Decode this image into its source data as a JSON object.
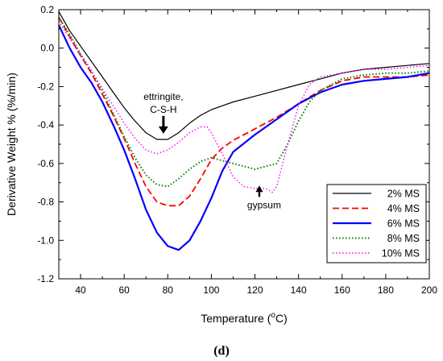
{
  "chart_data": {
    "type": "line",
    "xlabel": "Temperature (",
    "xlabel_unit": "o",
    "xlabel_tail": "C)",
    "ylabel": "Derivative Weight % (%/min)",
    "xlim": [
      30,
      200
    ],
    "ylim": [
      -1.2,
      0.2
    ],
    "x_ticks": [
      "40",
      "60",
      "80",
      "100",
      "120",
      "140",
      "160",
      "180",
      "200"
    ],
    "y_ticks": [
      "0.2",
      "0.0",
      "-0.2",
      "-0.4",
      "-0.6",
      "-0.8",
      "-1.0",
      "-1.2"
    ],
    "legend_position": "bottom-right",
    "series": [
      {
        "name": "2% MS",
        "color": "#000000",
        "style": "solid",
        "x": [
          30,
          35,
          40,
          45,
          50,
          55,
          60,
          65,
          70,
          75,
          80,
          85,
          90,
          95,
          100,
          110,
          120,
          130,
          140,
          150,
          160,
          170,
          180,
          190,
          200
        ],
        "y": [
          0.19,
          0.09,
          0.01,
          -0.07,
          -0.15,
          -0.23,
          -0.31,
          -0.38,
          -0.44,
          -0.475,
          -0.475,
          -0.44,
          -0.39,
          -0.35,
          -0.32,
          -0.28,
          -0.25,
          -0.22,
          -0.19,
          -0.16,
          -0.13,
          -0.11,
          -0.1,
          -0.09,
          -0.08
        ]
      },
      {
        "name": "4% MS",
        "color": "#ff0000",
        "style": "dashed",
        "x": [
          30,
          35,
          40,
          45,
          50,
          55,
          60,
          65,
          70,
          75,
          80,
          85,
          90,
          95,
          100,
          105,
          110,
          120,
          130,
          140,
          150,
          160,
          170,
          180,
          190,
          200
        ],
        "y": [
          0.16,
          0.06,
          -0.04,
          -0.13,
          -0.24,
          -0.35,
          -0.47,
          -0.6,
          -0.72,
          -0.8,
          -0.82,
          -0.82,
          -0.77,
          -0.68,
          -0.58,
          -0.52,
          -0.48,
          -0.42,
          -0.36,
          -0.29,
          -0.22,
          -0.17,
          -0.15,
          -0.15,
          -0.15,
          -0.14
        ]
      },
      {
        "name": "6% MS",
        "color": "#0000ff",
        "style": "solid",
        "x": [
          30,
          35,
          40,
          45,
          50,
          55,
          60,
          65,
          70,
          75,
          80,
          85,
          90,
          95,
          100,
          105,
          110,
          120,
          130,
          140,
          150,
          160,
          170,
          180,
          190,
          200
        ],
        "y": [
          0.12,
          0.0,
          -0.1,
          -0.18,
          -0.28,
          -0.4,
          -0.53,
          -0.68,
          -0.84,
          -0.96,
          -1.03,
          -1.05,
          -1.0,
          -0.9,
          -0.78,
          -0.64,
          -0.54,
          -0.45,
          -0.37,
          -0.29,
          -0.23,
          -0.19,
          -0.17,
          -0.16,
          -0.15,
          -0.13
        ]
      },
      {
        "name": "8% MS",
        "color": "#008000",
        "style": "dotted",
        "x": [
          30,
          35,
          40,
          45,
          50,
          55,
          60,
          65,
          70,
          75,
          80,
          85,
          90,
          95,
          100,
          110,
          120,
          130,
          135,
          140,
          145,
          150,
          160,
          170,
          180,
          190,
          200
        ],
        "y": [
          0.16,
          0.07,
          -0.03,
          -0.12,
          -0.22,
          -0.34,
          -0.46,
          -0.57,
          -0.66,
          -0.71,
          -0.72,
          -0.68,
          -0.63,
          -0.59,
          -0.57,
          -0.6,
          -0.63,
          -0.6,
          -0.5,
          -0.38,
          -0.28,
          -0.22,
          -0.16,
          -0.14,
          -0.13,
          -0.13,
          -0.12
        ]
      },
      {
        "name": "10% MS",
        "color": "#ff00ff",
        "style": "dotted",
        "x": [
          30,
          35,
          40,
          45,
          50,
          55,
          60,
          65,
          70,
          75,
          80,
          85,
          90,
          95,
          98,
          100,
          105,
          110,
          115,
          120,
          125,
          128,
          130,
          135,
          140,
          145,
          150,
          155,
          160,
          170,
          180,
          190,
          200
        ],
        "y": [
          0.14,
          0.05,
          -0.04,
          -0.12,
          -0.21,
          -0.3,
          -0.39,
          -0.47,
          -0.53,
          -0.55,
          -0.53,
          -0.49,
          -0.44,
          -0.41,
          -0.41,
          -0.44,
          -0.55,
          -0.67,
          -0.72,
          -0.73,
          -0.73,
          -0.75,
          -0.72,
          -0.5,
          -0.3,
          -0.19,
          -0.15,
          -0.14,
          -0.13,
          -0.11,
          -0.11,
          -0.1,
          -0.09
        ]
      }
    ],
    "annotations": [
      {
        "lines": [
          "ettringite,",
          "C-S-H"
        ],
        "arrow": "down",
        "x": 78,
        "y": -0.47
      },
      {
        "lines": [
          "gypsum"
        ],
        "arrow": "up",
        "x": 122,
        "y": -0.74
      }
    ]
  },
  "caption": "(d)"
}
